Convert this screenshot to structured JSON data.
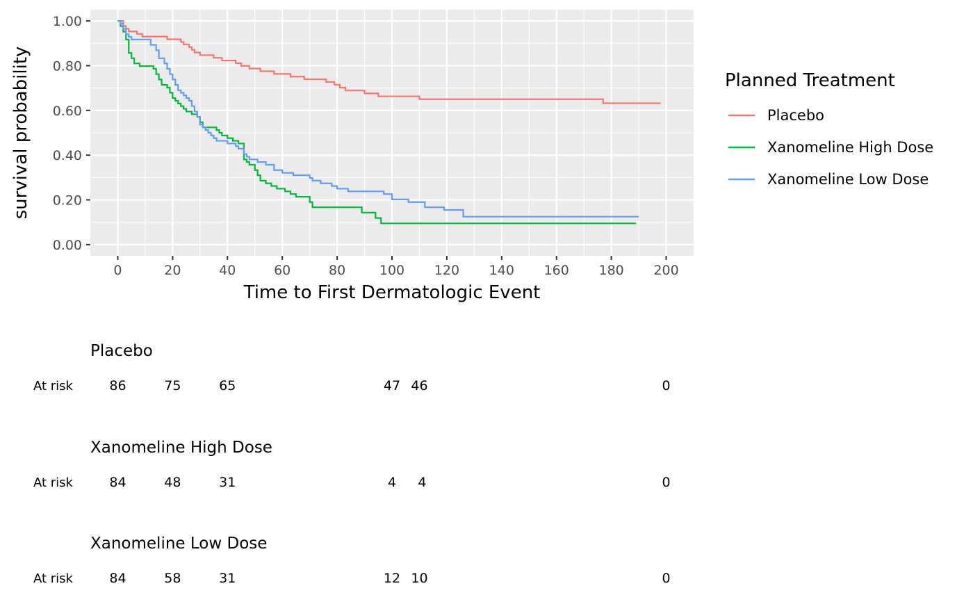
{
  "chart_data": {
    "type": "line",
    "subtype": "kaplan-meier step curves",
    "xlabel": "Time to First Dermatologic Event",
    "ylabel": "survival probability",
    "xlim": [
      -10,
      210
    ],
    "ylim": [
      -0.05,
      1.05
    ],
    "x_ticks": [
      0,
      20,
      40,
      60,
      80,
      100,
      120,
      140,
      160,
      180,
      200
    ],
    "y_ticks": [
      0,
      0.2,
      0.4,
      0.6,
      0.8,
      1.0
    ],
    "y_tick_labels": [
      "0.00",
      "0.20",
      "0.40",
      "0.60",
      "0.80",
      "1.00"
    ],
    "grid": true,
    "legend": {
      "title": "Planned Treatment",
      "position": "right"
    },
    "series": [
      {
        "name": "Placebo",
        "color": "#F8766D",
        "points": [
          [
            0,
            1.0
          ],
          [
            2,
            0.977
          ],
          [
            3,
            0.965
          ],
          [
            4,
            0.953
          ],
          [
            7,
            0.942
          ],
          [
            9,
            0.93
          ],
          [
            18,
            0.918
          ],
          [
            23,
            0.906
          ],
          [
            24,
            0.895
          ],
          [
            26,
            0.883
          ],
          [
            27,
            0.871
          ],
          [
            28,
            0.859
          ],
          [
            30,
            0.847
          ],
          [
            35,
            0.835
          ],
          [
            38,
            0.823
          ],
          [
            43,
            0.811
          ],
          [
            45,
            0.799
          ],
          [
            48,
            0.787
          ],
          [
            52,
            0.775
          ],
          [
            57,
            0.763
          ],
          [
            63,
            0.751
          ],
          [
            68,
            0.739
          ],
          [
            76,
            0.727
          ],
          [
            79,
            0.715
          ],
          [
            81,
            0.702
          ],
          [
            83,
            0.689
          ],
          [
            90,
            0.676
          ],
          [
            95,
            0.663
          ],
          [
            110,
            0.65
          ],
          [
            177,
            0.632
          ],
          [
            198,
            0.632
          ]
        ]
      },
      {
        "name": "Xanomeline High Dose",
        "color": "#00BA38",
        "points": [
          [
            0,
            1.0
          ],
          [
            1,
            0.976
          ],
          [
            2,
            0.952
          ],
          [
            3,
            0.917
          ],
          [
            4,
            0.857
          ],
          [
            5,
            0.833
          ],
          [
            6,
            0.81
          ],
          [
            8,
            0.798
          ],
          [
            13,
            0.786
          ],
          [
            14,
            0.762
          ],
          [
            15,
            0.738
          ],
          [
            16,
            0.714
          ],
          [
            18,
            0.702
          ],
          [
            19,
            0.679
          ],
          [
            20,
            0.655
          ],
          [
            21,
            0.643
          ],
          [
            22,
            0.631
          ],
          [
            23,
            0.619
          ],
          [
            24,
            0.607
          ],
          [
            25,
            0.595
          ],
          [
            27,
            0.583
          ],
          [
            29,
            0.571
          ],
          [
            30,
            0.547
          ],
          [
            31,
            0.524
          ],
          [
            36,
            0.512
          ],
          [
            37,
            0.5
          ],
          [
            38,
            0.488
          ],
          [
            40,
            0.476
          ],
          [
            42,
            0.464
          ],
          [
            44,
            0.452
          ],
          [
            46,
            0.381
          ],
          [
            47,
            0.369
          ],
          [
            48,
            0.357
          ],
          [
            50,
            0.333
          ],
          [
            51,
            0.31
          ],
          [
            52,
            0.286
          ],
          [
            54,
            0.274
          ],
          [
            56,
            0.262
          ],
          [
            58,
            0.25
          ],
          [
            61,
            0.238
          ],
          [
            63,
            0.226
          ],
          [
            65,
            0.214
          ],
          [
            70,
            0.19
          ],
          [
            71,
            0.167
          ],
          [
            89,
            0.143
          ],
          [
            94,
            0.119
          ],
          [
            96,
            0.095
          ],
          [
            189,
            0.095
          ]
        ]
      },
      {
        "name": "Xanomeline Low Dose",
        "color": "#619CFF",
        "points": [
          [
            0,
            1.0
          ],
          [
            1,
            0.988
          ],
          [
            2,
            0.964
          ],
          [
            3,
            0.94
          ],
          [
            4,
            0.929
          ],
          [
            5,
            0.917
          ],
          [
            12,
            0.893
          ],
          [
            14,
            0.869
          ],
          [
            15,
            0.833
          ],
          [
            17,
            0.81
          ],
          [
            18,
            0.786
          ],
          [
            19,
            0.762
          ],
          [
            20,
            0.738
          ],
          [
            21,
            0.714
          ],
          [
            22,
            0.69
          ],
          [
            23,
            0.679
          ],
          [
            24,
            0.667
          ],
          [
            25,
            0.655
          ],
          [
            26,
            0.643
          ],
          [
            27,
            0.619
          ],
          [
            28,
            0.595
          ],
          [
            29,
            0.571
          ],
          [
            30,
            0.536
          ],
          [
            31,
            0.524
          ],
          [
            32,
            0.512
          ],
          [
            33,
            0.5
          ],
          [
            34,
            0.488
          ],
          [
            35,
            0.476
          ],
          [
            36,
            0.464
          ],
          [
            40,
            0.452
          ],
          [
            43,
            0.44
          ],
          [
            44,
            0.429
          ],
          [
            46,
            0.405
          ],
          [
            47,
            0.393
          ],
          [
            48,
            0.381
          ],
          [
            51,
            0.369
          ],
          [
            54,
            0.357
          ],
          [
            57,
            0.333
          ],
          [
            60,
            0.321
          ],
          [
            64,
            0.31
          ],
          [
            70,
            0.298
          ],
          [
            71,
            0.286
          ],
          [
            74,
            0.274
          ],
          [
            78,
            0.262
          ],
          [
            80,
            0.25
          ],
          [
            84,
            0.238
          ],
          [
            97,
            0.226
          ],
          [
            100,
            0.202
          ],
          [
            106,
            0.19
          ],
          [
            112,
            0.167
          ],
          [
            119,
            0.155
          ],
          [
            126,
            0.125
          ],
          [
            190,
            0.125
          ]
        ]
      }
    ],
    "risk_table": {
      "row_label": "At risk",
      "groups": [
        {
          "name": "Placebo",
          "counts": [
            {
              "x": 0,
              "n": "86"
            },
            {
              "x": 20,
              "n": "75"
            },
            {
              "x": 40,
              "n": "65"
            },
            {
              "x": 100,
              "n": "47"
            },
            {
              "x": 110,
              "n": "46"
            },
            {
              "x": 200,
              "n": "0"
            }
          ]
        },
        {
          "name": "Xanomeline High Dose",
          "counts": [
            {
              "x": 0,
              "n": "84"
            },
            {
              "x": 20,
              "n": "48"
            },
            {
              "x": 40,
              "n": "31"
            },
            {
              "x": 100,
              "n": "4"
            },
            {
              "x": 111,
              "n": "4"
            },
            {
              "x": 200,
              "n": "0"
            }
          ]
        },
        {
          "name": "Xanomeline Low Dose",
          "counts": [
            {
              "x": 0,
              "n": "84"
            },
            {
              "x": 20,
              "n": "58"
            },
            {
              "x": 40,
              "n": "31"
            },
            {
              "x": 100,
              "n": "12"
            },
            {
              "x": 110,
              "n": "10"
            },
            {
              "x": 200,
              "n": "0"
            }
          ]
        }
      ]
    },
    "colors": {
      "panel_background": "#EBEBEB",
      "grid": "#FFFFFF",
      "tick_text": "#4D4D4D",
      "text": "#000000"
    }
  }
}
